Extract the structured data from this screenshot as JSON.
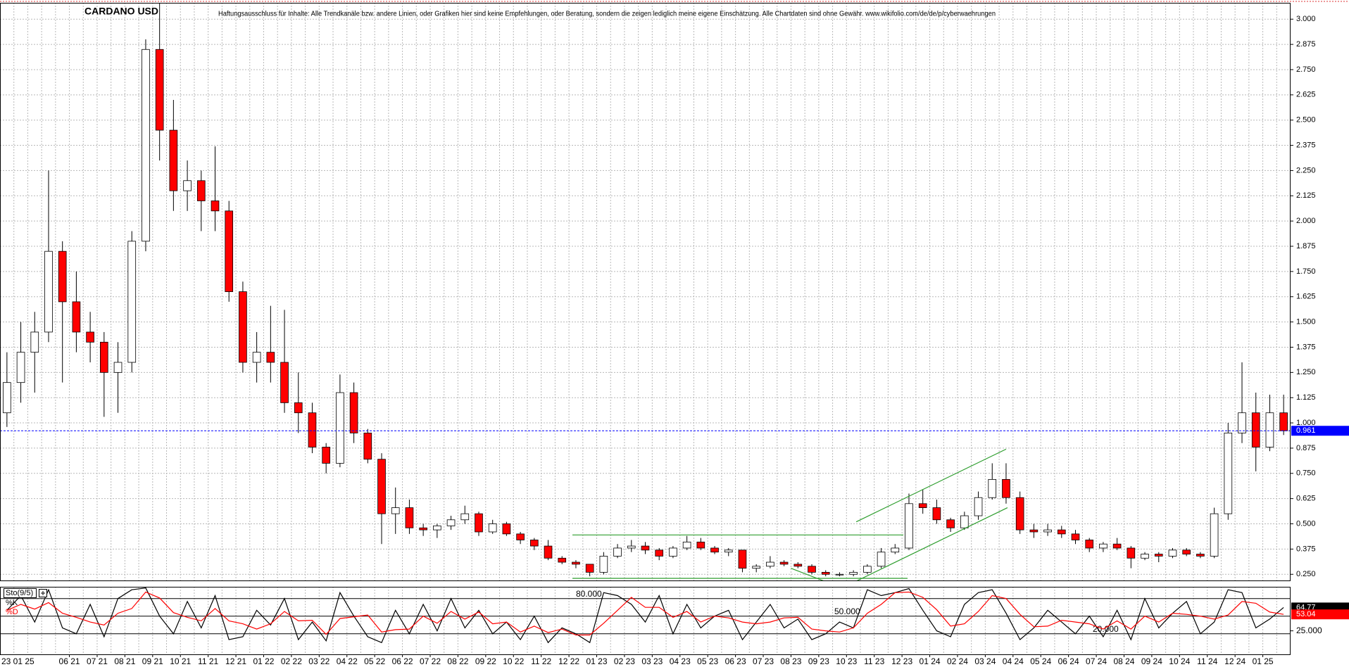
{
  "chart_data": {
    "type": "candlestick",
    "title": "CARDANO USD",
    "subtitle": "Haftungsausschluss für Inhalte: Alle Trendkanäle bzw. andere Linien, oder Grafiken hier sind keine Empfehlungen, oder Beratung, sondern die zeigen lediglich meine eigene Einschätzung. Alle Chartdaten sind ohne Gewähr. www.wikifolio.com/de/de/p/cyberwaehrungen",
    "date_label": "23 01 25",
    "categories": [
      null,
      null,
      null,
      null,
      null,
      "06 21",
      null,
      "07 21",
      null,
      "08 21",
      null,
      "09 21",
      null,
      "10 21",
      null,
      "11 21",
      null,
      "12 21",
      null,
      "01 22",
      null,
      "02 22",
      null,
      "03 22",
      null,
      "04 22",
      null,
      "05 22",
      null,
      "06 22",
      null,
      "07 22",
      null,
      "08 22",
      null,
      "09 22",
      null,
      "10 22",
      null,
      "11 22",
      null,
      "12 22",
      null,
      "01 23",
      null,
      "02 23",
      null,
      "03 23",
      null,
      "04 23",
      null,
      "05 23",
      null,
      "06 23",
      null,
      "07 23",
      null,
      "08 23",
      null,
      "09 23",
      null,
      "10 23",
      null,
      "11 23",
      null,
      "12 23",
      null,
      "01 24",
      null,
      "02 24",
      null,
      "03 24",
      null,
      "04 24",
      null,
      "05 24",
      null,
      "06 24",
      null,
      "07 24",
      null,
      "08 24",
      null,
      "09 24",
      null,
      "10 24",
      null,
      "11 24",
      null,
      "12 24",
      null,
      "01 25",
      null
    ],
    "open": [
      1.05,
      1.2,
      1.35,
      1.45,
      1.85,
      1.6,
      1.45,
      1.4,
      1.25,
      1.3,
      1.9,
      2.85,
      2.45,
      2.15,
      2.2,
      2.1,
      2.05,
      1.65,
      1.3,
      1.35,
      1.3,
      1.1,
      1.05,
      0.88,
      0.8,
      1.15,
      0.95,
      0.82,
      0.55,
      0.58,
      0.48,
      0.47,
      0.49,
      0.52,
      0.55,
      0.46,
      0.5,
      0.45,
      0.42,
      0.39,
      0.33,
      0.31,
      0.3,
      0.26,
      0.34,
      0.38,
      0.39,
      0.37,
      0.34,
      0.38,
      0.41,
      0.38,
      0.36,
      0.37,
      0.28,
      0.29,
      0.31,
      0.3,
      0.29,
      0.26,
      0.25,
      0.25,
      0.26,
      0.29,
      0.36,
      0.38,
      0.6,
      0.58,
      0.52,
      0.48,
      0.54,
      0.63,
      0.72,
      0.63,
      0.47,
      0.46,
      0.47,
      0.45,
      0.42,
      0.38,
      0.4,
      0.38,
      0.33,
      0.35,
      0.34,
      0.37,
      0.35,
      0.34,
      0.55,
      0.95,
      1.05,
      0.88,
      1.05
    ],
    "high": [
      1.35,
      1.5,
      1.55,
      2.25,
      1.9,
      1.75,
      1.55,
      1.45,
      1.4,
      1.95,
      2.9,
      3.08,
      2.6,
      2.3,
      2.25,
      2.37,
      2.1,
      1.7,
      1.45,
      1.58,
      1.56,
      1.25,
      1.1,
      0.9,
      1.24,
      1.2,
      0.97,
      0.85,
      0.68,
      0.62,
      0.5,
      0.5,
      0.54,
      0.59,
      0.56,
      0.52,
      0.51,
      0.46,
      0.43,
      0.42,
      0.34,
      0.32,
      0.3,
      0.36,
      0.4,
      0.42,
      0.41,
      0.38,
      0.39,
      0.44,
      0.43,
      0.39,
      0.38,
      0.37,
      0.3,
      0.34,
      0.32,
      0.31,
      0.3,
      0.27,
      0.26,
      0.27,
      0.3,
      0.38,
      0.4,
      0.65,
      0.67,
      0.62,
      0.53,
      0.56,
      0.66,
      0.8,
      0.8,
      0.66,
      0.5,
      0.5,
      0.49,
      0.47,
      0.43,
      0.41,
      0.43,
      0.39,
      0.36,
      0.36,
      0.38,
      0.38,
      0.36,
      0.58,
      1.0,
      1.3,
      1.15,
      1.14,
      1.14
    ],
    "low": [
      0.98,
      1.1,
      1.15,
      1.4,
      1.2,
      1.35,
      1.3,
      1.03,
      1.05,
      1.25,
      1.85,
      2.3,
      2.05,
      2.05,
      1.95,
      1.95,
      1.6,
      1.25,
      1.2,
      1.2,
      1.05,
      0.95,
      0.85,
      0.75,
      0.78,
      0.9,
      0.8,
      0.4,
      0.45,
      0.45,
      0.44,
      0.43,
      0.47,
      0.5,
      0.44,
      0.45,
      0.44,
      0.4,
      0.37,
      0.32,
      0.3,
      0.28,
      0.24,
      0.25,
      0.33,
      0.36,
      0.35,
      0.32,
      0.33,
      0.37,
      0.37,
      0.35,
      0.34,
      0.26,
      0.26,
      0.28,
      0.29,
      0.28,
      0.25,
      0.24,
      0.24,
      0.24,
      0.25,
      0.28,
      0.35,
      0.37,
      0.55,
      0.5,
      0.46,
      0.47,
      0.52,
      0.62,
      0.6,
      0.45,
      0.43,
      0.44,
      0.43,
      0.4,
      0.36,
      0.36,
      0.37,
      0.28,
      0.32,
      0.31,
      0.33,
      0.34,
      0.33,
      0.33,
      0.52,
      0.9,
      0.76,
      0.86,
      0.94
    ],
    "close": [
      1.2,
      1.35,
      1.45,
      1.85,
      1.6,
      1.45,
      1.4,
      1.25,
      1.3,
      1.9,
      2.85,
      2.45,
      2.15,
      2.2,
      2.1,
      2.05,
      1.65,
      1.3,
      1.35,
      1.3,
      1.1,
      1.05,
      0.88,
      0.8,
      1.15,
      0.95,
      0.82,
      0.55,
      0.58,
      0.48,
      0.47,
      0.49,
      0.52,
      0.55,
      0.46,
      0.5,
      0.45,
      0.42,
      0.39,
      0.33,
      0.31,
      0.3,
      0.26,
      0.34,
      0.38,
      0.39,
      0.37,
      0.34,
      0.38,
      0.41,
      0.38,
      0.36,
      0.37,
      0.28,
      0.29,
      0.31,
      0.3,
      0.29,
      0.26,
      0.25,
      0.25,
      0.26,
      0.29,
      0.36,
      0.38,
      0.6,
      0.58,
      0.52,
      0.48,
      0.54,
      0.63,
      0.72,
      0.63,
      0.47,
      0.46,
      0.47,
      0.45,
      0.42,
      0.38,
      0.4,
      0.38,
      0.33,
      0.35,
      0.34,
      0.37,
      0.35,
      0.34,
      0.55,
      0.95,
      1.05,
      0.88,
      1.05,
      0.961
    ],
    "up_color": "#ffffff",
    "down_color": "#ff0000",
    "wick_color": "#000000",
    "ylim": [
      0.216,
      3.081
    ],
    "yticks": [
      {
        "value": 0.25,
        "label": "0.250"
      },
      {
        "value": 0.375,
        "label": "0.375"
      },
      {
        "value": 0.5,
        "label": "0.500"
      },
      {
        "value": 0.625,
        "label": "0.625"
      },
      {
        "value": 0.75,
        "label": "0.750"
      },
      {
        "value": 0.875,
        "label": "0.875"
      },
      {
        "value": 1.0,
        "label": "1.000"
      },
      {
        "value": 1.125,
        "label": "1.125"
      },
      {
        "value": 1.25,
        "label": "1.250"
      },
      {
        "value": 1.375,
        "label": "1.375"
      },
      {
        "value": 1.5,
        "label": "1.500"
      },
      {
        "value": 1.625,
        "label": "1.625"
      },
      {
        "value": 1.75,
        "label": "1.750"
      },
      {
        "value": 1.875,
        "label": "1.875"
      },
      {
        "value": 2.0,
        "label": "2.000"
      },
      {
        "value": 2.125,
        "label": "2.125"
      },
      {
        "value": 2.25,
        "label": "2.250"
      },
      {
        "value": 2.375,
        "label": "2.375"
      },
      {
        "value": 2.5,
        "label": "2.500"
      },
      {
        "value": 2.625,
        "label": "2.625"
      },
      {
        "value": 2.75,
        "label": "2.750"
      },
      {
        "value": 2.875,
        "label": "2.875"
      },
      {
        "value": 3.0,
        "label": "3.000"
      }
    ],
    "grid": true,
    "last_color": "#0000ff",
    "trendline_color": "#2e9e2e",
    "trendlines": [
      {
        "x": [
          40.75,
          64.6
        ],
        "y": [
          0.445,
          0.445
        ]
      },
      {
        "x": [
          40.75,
          64.9
        ],
        "y": [
          0.23,
          0.23
        ]
      },
      {
        "x": [
          61.2,
          72.0
        ],
        "y": [
          0.51,
          0.87
        ]
      },
      {
        "x": [
          61.2,
          72.1
        ],
        "y": [
          0.216,
          0.58
        ]
      },
      {
        "x": [
          56.5,
          58.9
        ],
        "y": [
          0.28,
          0.216
        ]
      }
    ],
    "indicator": {
      "name": "Sto(9/5)",
      "ylim": [
        -15,
        100
      ],
      "levels": [
        {
          "value": 80,
          "label": "80.000"
        },
        {
          "value": 50,
          "label": "50.000"
        },
        {
          "value": 20,
          "label": "20.000"
        }
      ],
      "yticks": [
        {
          "value": 25,
          "label": "25.000"
        }
      ],
      "series": [
        {
          "name": "%K",
          "color": "#000000",
          "values": [
            60,
            85,
            40,
            95,
            30,
            20,
            70,
            15,
            80,
            95,
            98,
            50,
            20,
            75,
            30,
            85,
            10,
            15,
            60,
            35,
            80,
            10,
            40,
            8,
            90,
            50,
            15,
            5,
            60,
            20,
            70,
            25,
            80,
            30,
            60,
            20,
            40,
            10,
            50,
            5,
            30,
            20,
            5,
            90,
            85,
            70,
            40,
            85,
            20,
            70,
            30,
            50,
            60,
            10,
            40,
            70,
            30,
            45,
            10,
            20,
            40,
            30,
            95,
            85,
            90,
            97,
            60,
            25,
            15,
            70,
            90,
            95,
            55,
            10,
            30,
            60,
            40,
            20,
            50,
            15,
            60,
            10,
            80,
            30,
            55,
            75,
            20,
            40,
            95,
            90,
            30,
            45,
            64.77
          ]
        },
        {
          "name": "%D",
          "color": "#ff0000",
          "values": [
            60,
            70,
            62,
            73,
            55,
            48,
            40,
            35,
            55,
            63,
            91,
            81,
            56,
            48,
            42,
            63,
            42,
            37,
            28,
            37,
            58,
            42,
            43,
            19,
            46,
            49,
            52,
            23,
            27,
            28,
            50,
            38,
            58,
            45,
            57,
            37,
            40,
            23,
            33,
            22,
            28,
            18,
            18,
            38,
            60,
            82,
            65,
            65,
            48,
            58,
            40,
            50,
            47,
            40,
            37,
            40,
            47,
            48,
            28,
            25,
            23,
            30,
            55,
            70,
            90,
            91,
            82,
            61,
            33,
            37,
            58,
            85,
            80,
            53,
            32,
            33,
            43,
            40,
            37,
            28,
            42,
            28,
            50,
            40,
            55,
            53,
            50,
            45,
            52,
            75,
            72,
            57,
            53.04
          ]
        }
      ]
    }
  }
}
